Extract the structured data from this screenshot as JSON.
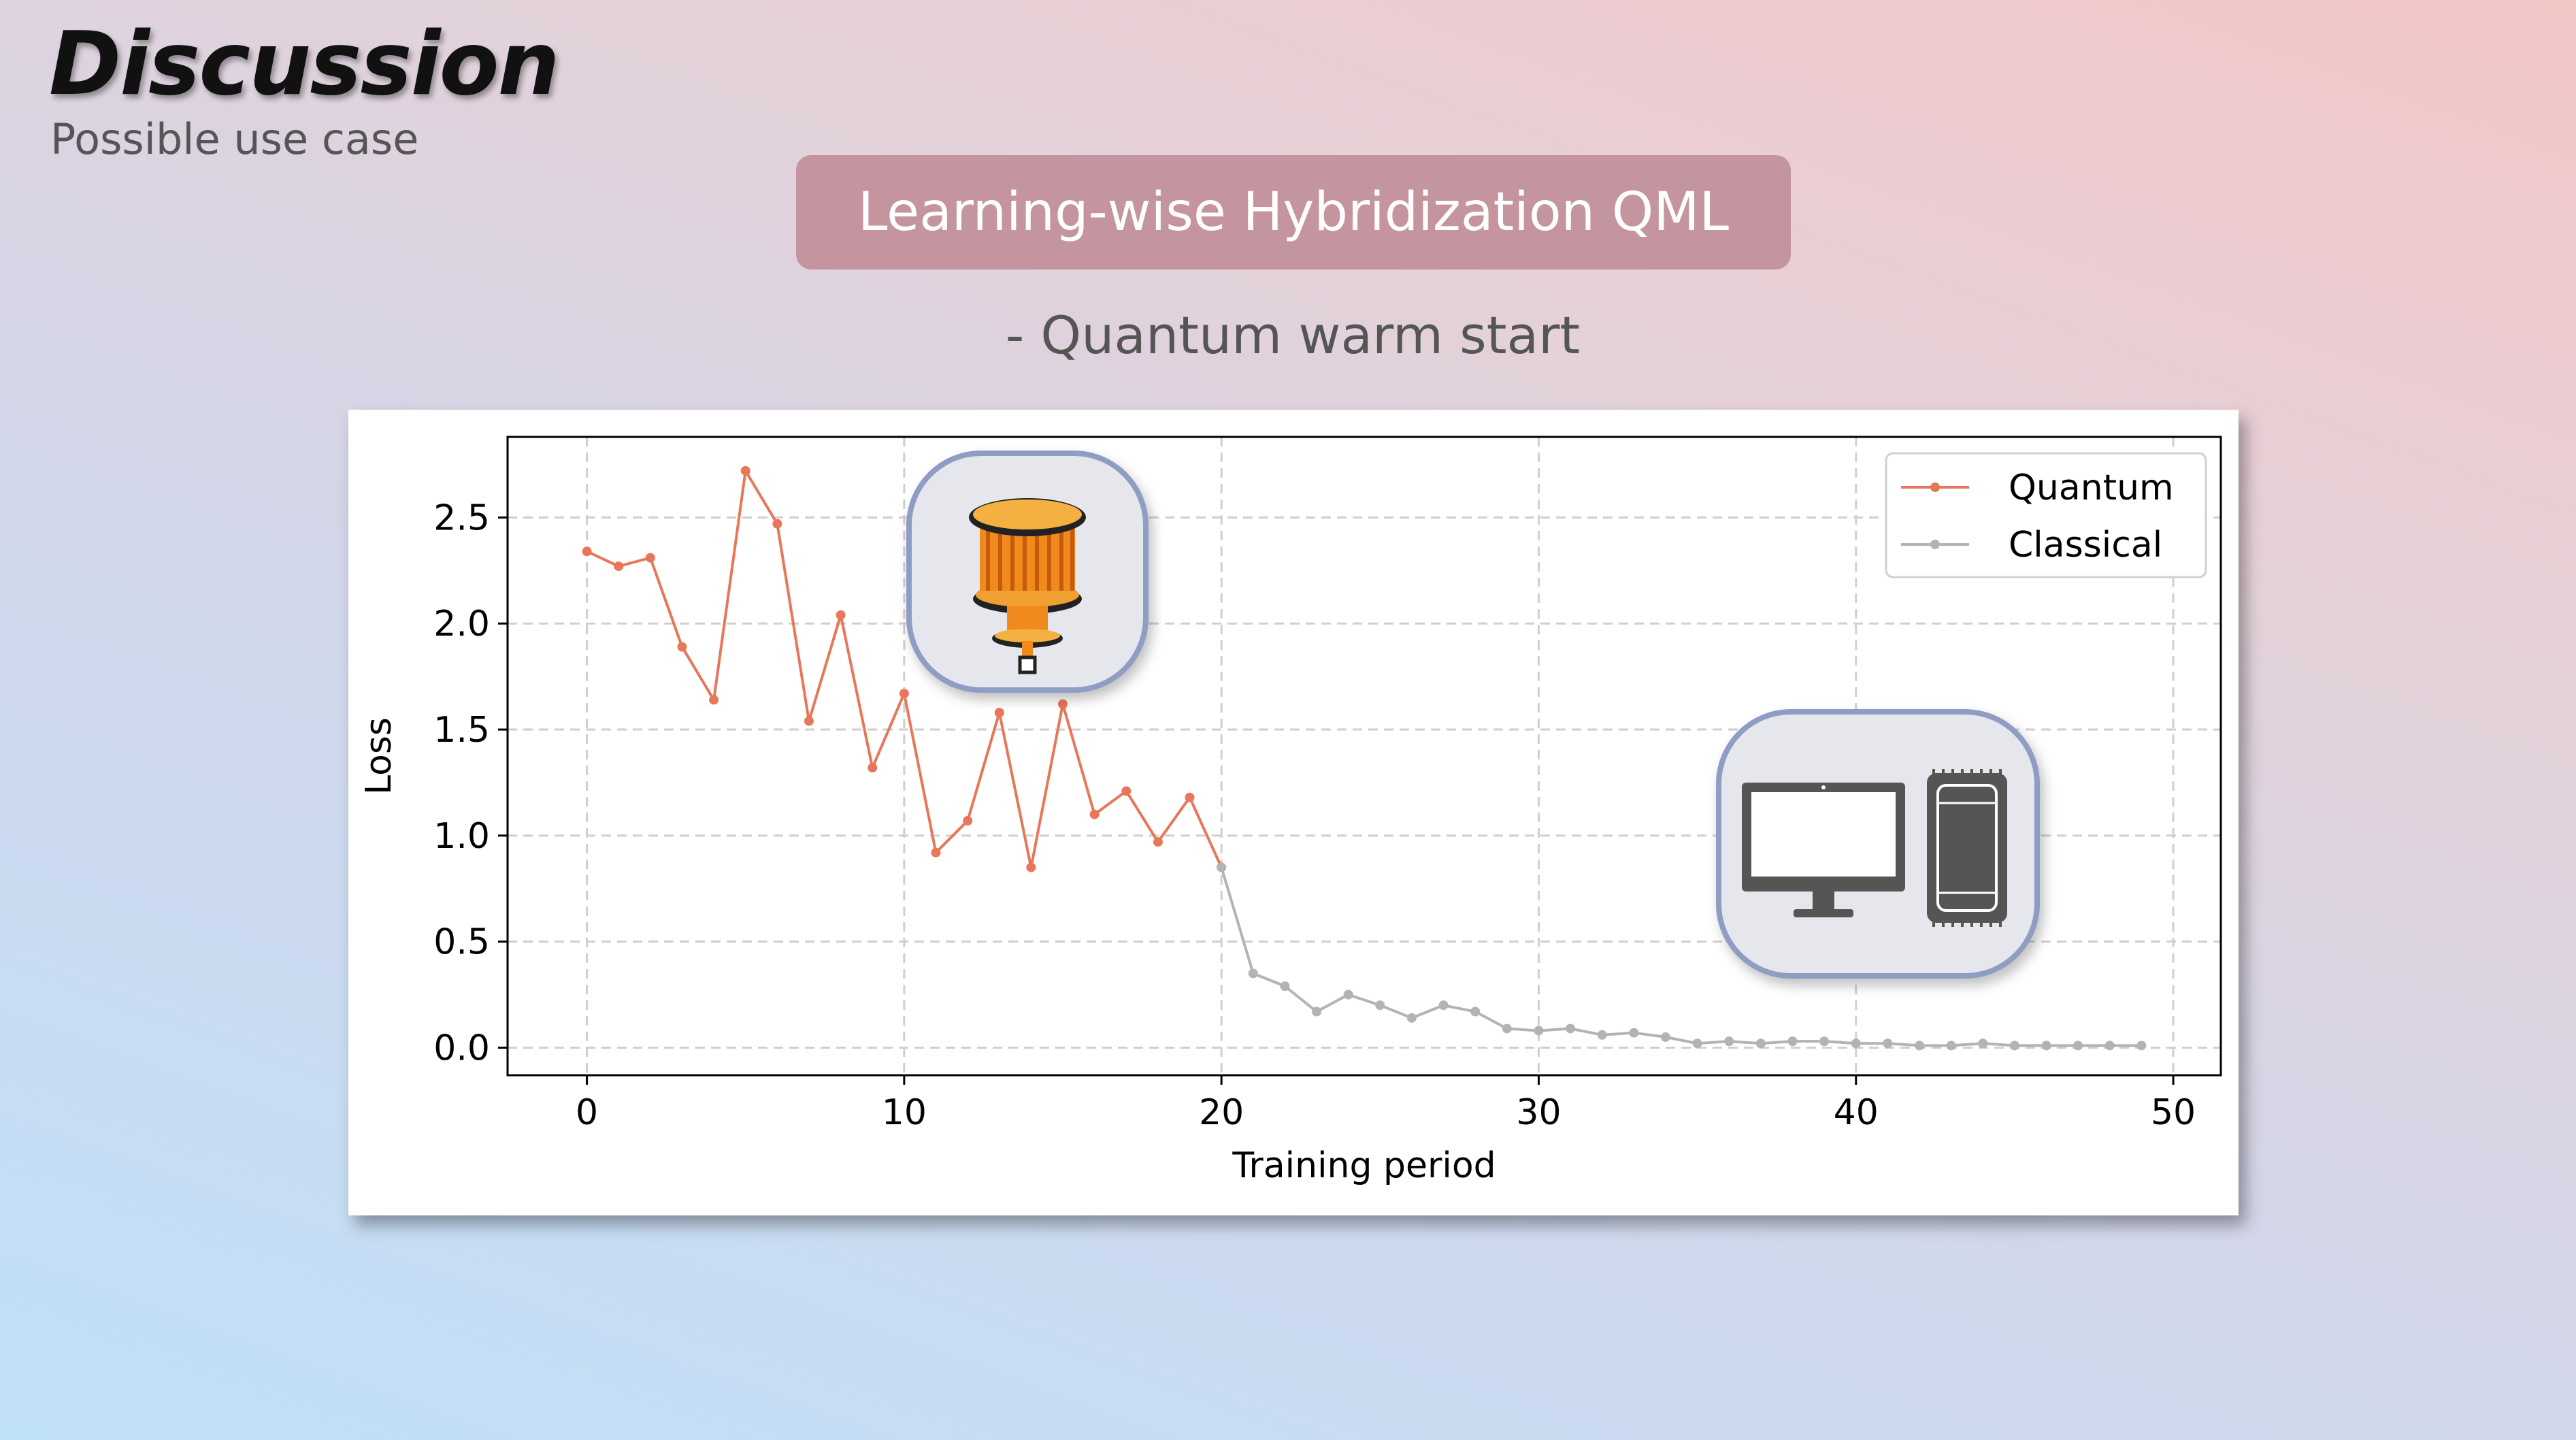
{
  "slide": {
    "title": "Discussion",
    "subtitle": "Possible use case",
    "banner": "Learning-wise Hybridization QML",
    "section": "- Quantum warm start"
  },
  "icons": {
    "quantum": "quantum-computer-icon",
    "classical": "desktop-and-server-icon"
  },
  "chart_data": {
    "type": "line",
    "title": "",
    "xlabel": "Training period",
    "ylabel": "Loss",
    "xlim": [
      -2.5,
      51.5
    ],
    "ylim": [
      -0.13,
      2.88
    ],
    "xticks": [
      0,
      10,
      20,
      30,
      40,
      50
    ],
    "yticks": [
      0.0,
      0.5,
      1.0,
      1.5,
      2.0,
      2.5
    ],
    "grid": true,
    "legend": "top-right",
    "series": [
      {
        "name": "Quantum",
        "color": "#e8775a",
        "x": [
          0,
          1,
          2,
          3,
          4,
          5,
          6,
          7,
          8,
          9,
          10,
          11,
          12,
          13,
          14,
          15,
          16,
          17,
          18,
          19,
          20
        ],
        "y": [
          2.34,
          2.27,
          2.31,
          1.89,
          1.64,
          2.72,
          2.47,
          1.54,
          2.04,
          1.32,
          1.67,
          0.92,
          1.07,
          1.58,
          0.85,
          1.62,
          1.1,
          1.21,
          0.97,
          1.18,
          0.85
        ]
      },
      {
        "name": "Classical",
        "color": "#b3b3b3",
        "x": [
          20,
          21,
          22,
          23,
          24,
          25,
          26,
          27,
          28,
          29,
          30,
          31,
          32,
          33,
          34,
          35,
          36,
          37,
          38,
          39,
          40,
          41,
          42,
          43,
          44,
          45,
          46,
          47,
          48,
          49
        ],
        "y": [
          0.85,
          0.35,
          0.29,
          0.17,
          0.25,
          0.2,
          0.14,
          0.2,
          0.17,
          0.09,
          0.08,
          0.09,
          0.06,
          0.07,
          0.05,
          0.02,
          0.03,
          0.02,
          0.03,
          0.03,
          0.02,
          0.02,
          0.01,
          0.01,
          0.02,
          0.01,
          0.01,
          0.01,
          0.01,
          0.01
        ]
      }
    ]
  }
}
